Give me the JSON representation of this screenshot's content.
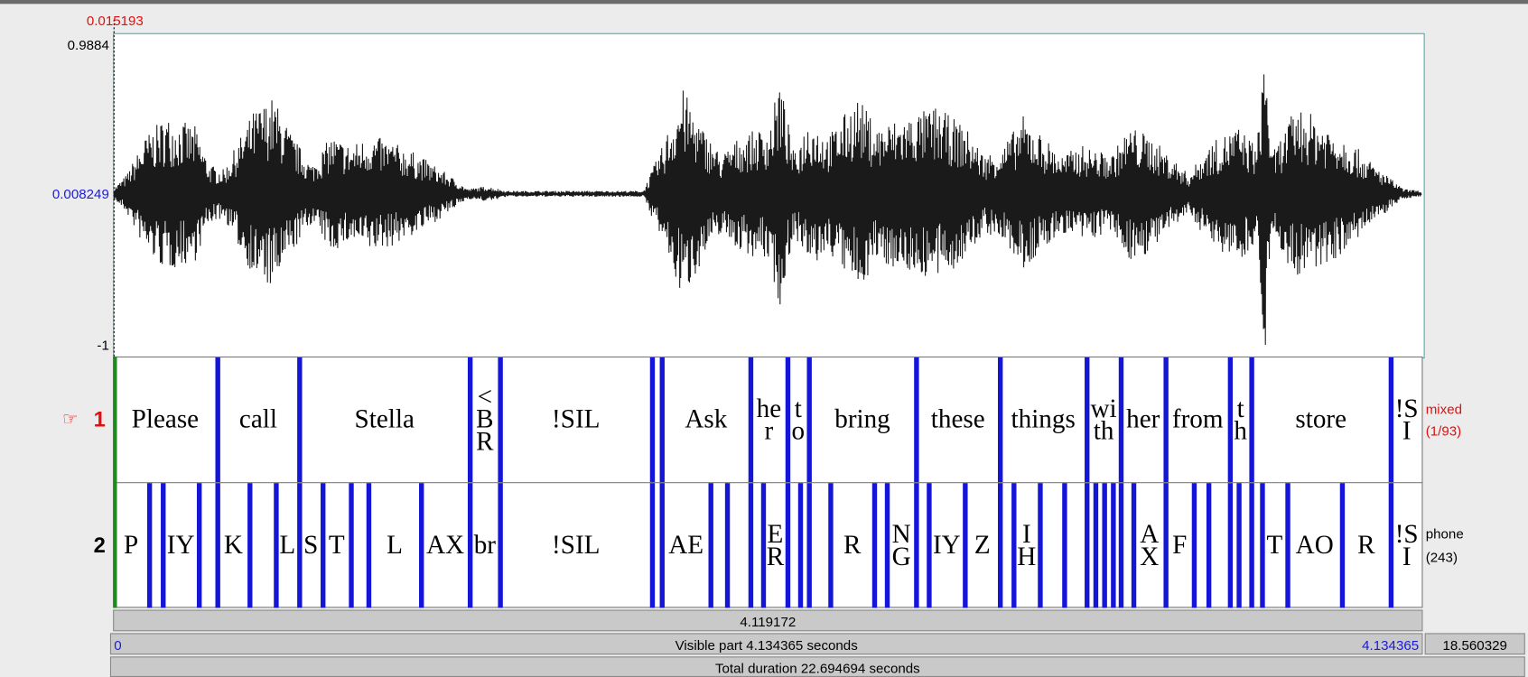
{
  "waveform": {
    "cursor_value": "0.015193",
    "y_max": "0.9884",
    "y_mid": "0.008249",
    "y_min": "-1"
  },
  "tiers": [
    {
      "number": "1",
      "name": "mixed",
      "count": "(1/93)",
      "intervals": [
        "Please",
        "call",
        "Stella",
        "<BR",
        "!SIL",
        "Ask",
        "her",
        "to",
        "bring",
        "these",
        "things",
        "with",
        "her",
        "from",
        "th",
        "store",
        "!SI"
      ]
    },
    {
      "number": "2",
      "name": "phone",
      "count": "(243)",
      "intervals": [
        "P",
        "IY",
        "K",
        "L",
        "S",
        "T",
        "L",
        "AX",
        "br",
        "!SIL",
        "AE",
        "ER",
        "R",
        "NG",
        "IY",
        "Z",
        "IH",
        "AX",
        "F",
        "T",
        "AO",
        "R",
        "!SI"
      ]
    }
  ],
  "bars": {
    "selection": "4.119172",
    "visible_start": "0",
    "visible": "Visible part 4.134365 seconds",
    "visible_end": "4.134365",
    "right_value": "18.560329",
    "total": "Total duration 22.694694 seconds"
  }
}
